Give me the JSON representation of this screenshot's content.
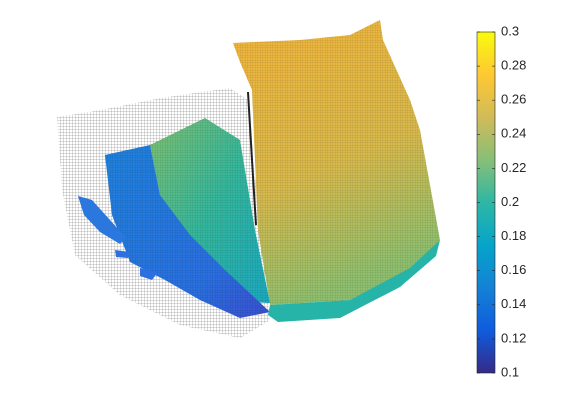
{
  "chart_data": {
    "type": "surface",
    "colormap": [
      "#352a87",
      "#0f5cdd",
      "#1481d6",
      "#06a4ca",
      "#2eb7a4",
      "#87bf77",
      "#d1bb59",
      "#fec832",
      "#f9fb0e"
    ],
    "clim": [
      0.1,
      0.3
    ],
    "cticks": [
      0.1,
      0.12,
      0.14,
      0.16,
      0.18,
      0.2,
      0.22,
      0.24,
      0.26,
      0.28,
      0.3
    ]
  }
}
